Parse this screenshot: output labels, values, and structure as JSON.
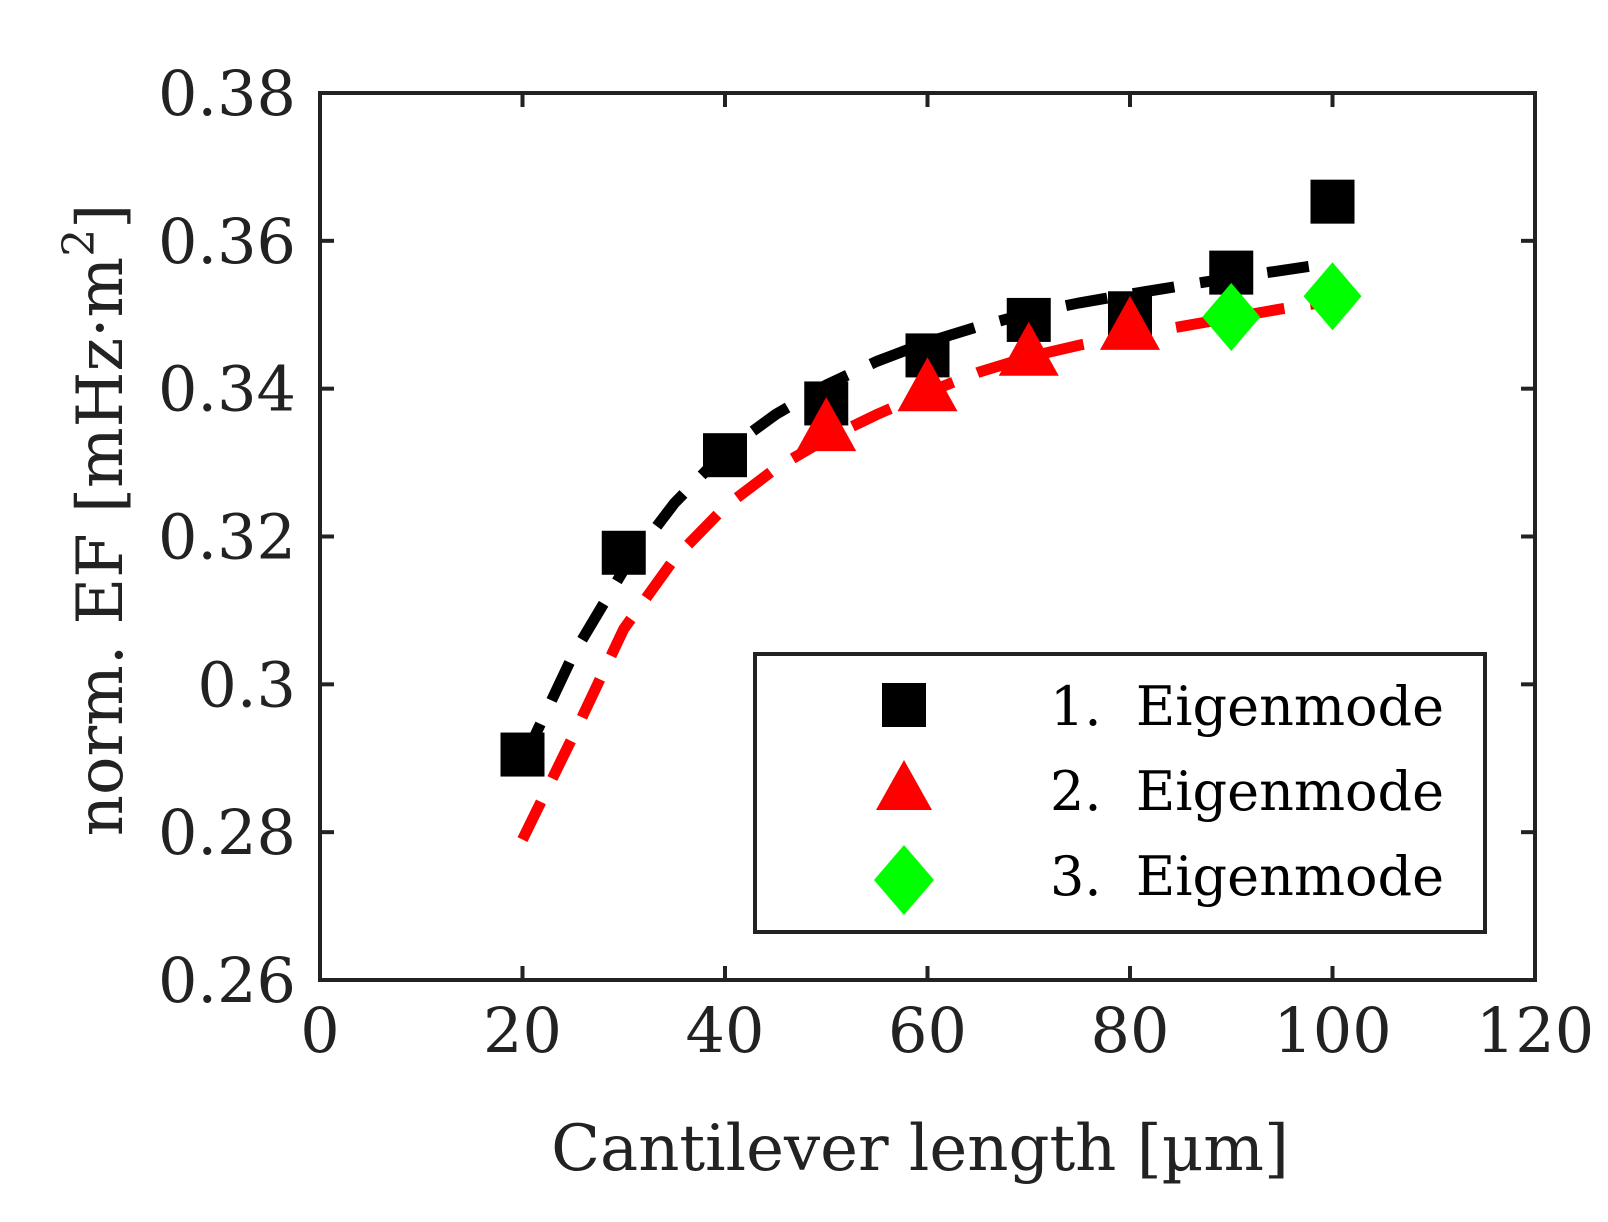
{
  "chart_data": {
    "type": "scatter",
    "title": "",
    "xlabel": "Cantilever length [µm]",
    "ylabel": "norm. EF [mHz·m",
    "ylabel_superscript": "2",
    "ylabel_close": "]",
    "xlim": [
      0,
      120
    ],
    "ylim": [
      0.26,
      0.38
    ],
    "x_ticks": [
      0,
      20,
      40,
      60,
      80,
      100,
      120
    ],
    "x_tick_labels": [
      "0",
      "20",
      "40",
      "60",
      "80",
      "100",
      "120"
    ],
    "y_ticks": [
      0.26,
      0.28,
      0.3,
      0.32,
      0.34,
      0.36,
      0.38
    ],
    "y_tick_labels": [
      "0.26",
      "0.28",
      "0.3",
      "0.32",
      "0.34",
      "0.36",
      "0.38"
    ],
    "grid": false,
    "legend_position": "bottom-right",
    "series": [
      {
        "name": "1.  Eigenmode",
        "marker": "square",
        "color": "#000000",
        "x": [
          20,
          30,
          40,
          50,
          60,
          70,
          80,
          90,
          100
        ],
        "y": [
          0.2905,
          0.3178,
          0.331,
          0.338,
          0.3445,
          0.3493,
          0.3502,
          0.3557,
          0.3653
        ]
      },
      {
        "name": "2.  Eigenmode",
        "marker": "triangle",
        "color": "#ff0000",
        "x": [
          50,
          60,
          70,
          80
        ],
        "y": [
          0.3348,
          0.3402,
          0.345,
          0.3485
        ]
      },
      {
        "name": "3.  Eigenmode",
        "marker": "diamond",
        "color": "#00ff00",
        "x": [
          90,
          100
        ],
        "y": [
          0.3497,
          0.3525
        ]
      }
    ],
    "fit_lines": [
      {
        "name": "fit 1. Eigenmode",
        "color": "#000000",
        "style": "dashed",
        "x": [
          20,
          25,
          30,
          35,
          40,
          45,
          50,
          55,
          60,
          65,
          70,
          75,
          80,
          85,
          90,
          95,
          100
        ],
        "y": [
          0.2895,
          0.304,
          0.3155,
          0.3245,
          0.3315,
          0.3365,
          0.3405,
          0.3437,
          0.3463,
          0.3484,
          0.3502,
          0.3516,
          0.3528,
          0.3539,
          0.355,
          0.356,
          0.357
        ]
      },
      {
        "name": "fit 2. Eigenmode",
        "color": "#ff0000",
        "style": "dashed",
        "x": [
          20,
          25,
          30,
          35,
          40,
          45,
          50,
          55,
          60,
          65,
          70,
          75,
          80,
          85,
          90,
          95,
          103
        ],
        "y": [
          0.279,
          0.293,
          0.3075,
          0.317,
          0.324,
          0.3292,
          0.3332,
          0.3365,
          0.3395,
          0.3422,
          0.3443,
          0.3459,
          0.3472,
          0.3484,
          0.3496,
          0.3508,
          0.3525
        ]
      }
    ]
  }
}
